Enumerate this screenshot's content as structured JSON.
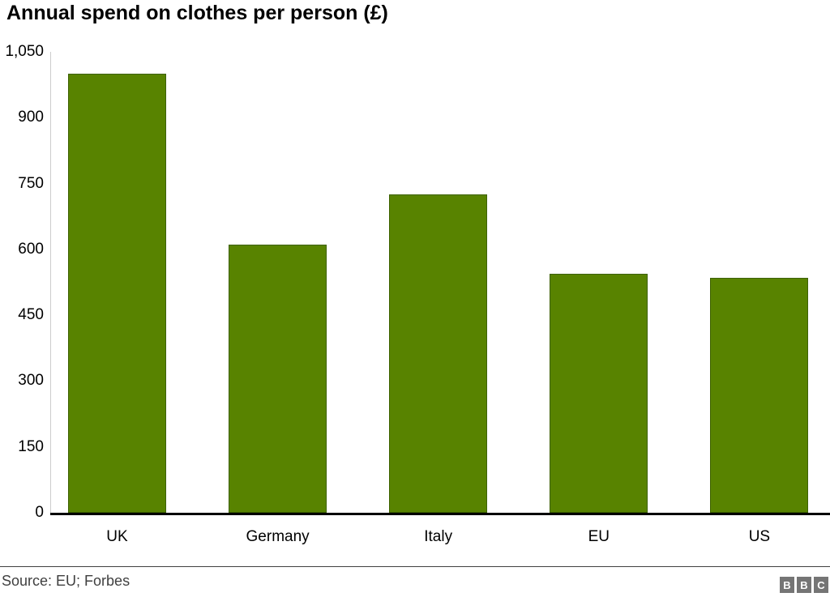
{
  "title": "Annual spend on clothes per person (£)",
  "footer": {
    "source": "Source: EU; Forbes"
  },
  "logo": {
    "name": "bbc-logo",
    "letters": [
      "B",
      "B",
      "C"
    ]
  },
  "colors": {
    "bar_fill": "#588300",
    "axis_line": "#000000",
    "y_axis_line": "#cccccc",
    "logo_block_bg": "#757575",
    "logo_letter": "#ffffff",
    "source_text": "#404040"
  },
  "chart_data": {
    "type": "bar",
    "categories": [
      "UK",
      "Germany",
      "Italy",
      "EU",
      "US"
    ],
    "values": [
      1000,
      610,
      725,
      545,
      535
    ],
    "title": "Annual spend on clothes per person (£)",
    "xlabel": "",
    "ylabel": "",
    "ylim": [
      0,
      1050
    ],
    "yticks": [
      0,
      150,
      300,
      450,
      600,
      750,
      900,
      1050
    ],
    "ytick_labels": [
      "0",
      "150",
      "300",
      "450",
      "600",
      "750",
      "900",
      "1,050"
    ],
    "grid": false,
    "legend": false,
    "bar_color": "#588300"
  }
}
